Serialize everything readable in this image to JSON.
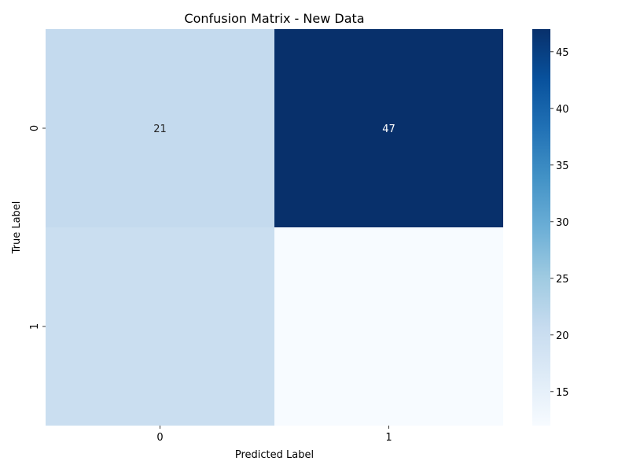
{
  "chart_data": {
    "type": "heatmap",
    "title": "Confusion Matrix - New Data",
    "xlabel": "Predicted Label",
    "ylabel": "True Label",
    "x_categories": [
      "0",
      "1"
    ],
    "y_categories": [
      "0",
      "1"
    ],
    "matrix": [
      [
        21,
        47
      ],
      [
        20,
        12
      ]
    ],
    "cell_labels": [
      [
        "21",
        "47"
      ],
      [
        "",
        ""
      ]
    ],
    "colormap": "Blues",
    "colorbar": {
      "range": [
        12,
        47
      ],
      "ticks": [
        15,
        20,
        25,
        30,
        35,
        40,
        45
      ],
      "tick_labels": [
        "15",
        "20",
        "25",
        "30",
        "35",
        "40",
        "45"
      ]
    }
  }
}
